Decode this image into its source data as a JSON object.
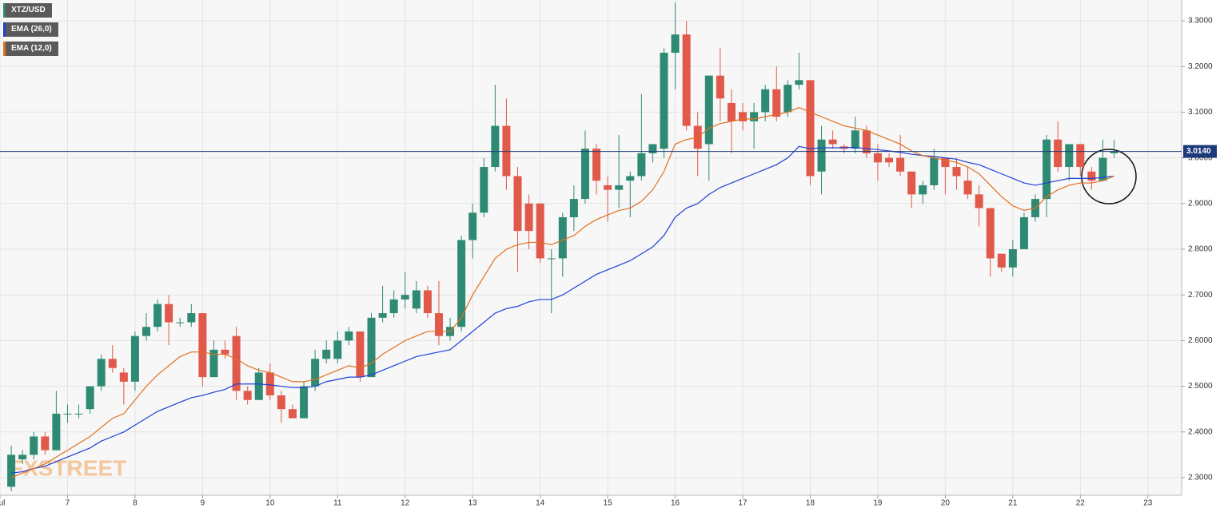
{
  "chart_data": {
    "type": "candlestick",
    "categories": [
      null,
      null,
      null,
      null,
      null,
      null,
      null,
      null,
      null,
      null,
      null,
      null,
      null,
      null,
      null,
      null,
      null,
      null,
      null,
      null,
      null,
      null,
      null,
      null,
      null,
      null,
      null,
      null,
      null,
      null,
      null,
      null,
      null,
      null,
      null,
      null,
      null,
      null,
      null,
      null,
      null,
      null,
      null,
      null,
      null,
      null,
      null,
      null,
      null,
      null,
      null,
      null,
      null,
      null,
      null,
      null,
      null,
      null,
      null,
      null,
      null,
      null,
      null,
      null,
      null,
      null,
      null,
      null,
      null,
      null,
      null,
      null,
      null,
      null,
      null,
      null,
      null,
      null,
      null,
      null,
      null,
      null,
      null,
      null,
      null,
      null,
      null,
      null,
      null,
      null,
      null,
      null,
      null,
      null,
      null,
      null,
      null,
      null,
      null
    ],
    "series": [
      {
        "name": "XTZ/USD",
        "color": "#2f8a73",
        "down_color": "#e0594a",
        "open": [
          2.28,
          2.34,
          2.35,
          2.39,
          2.36,
          2.44,
          2.44,
          2.45,
          2.5,
          2.56,
          2.53,
          2.51,
          2.61,
          2.63,
          2.68,
          2.64,
          2.64,
          2.66,
          2.52,
          2.58,
          2.61,
          2.49,
          2.47,
          2.53,
          2.48,
          2.45,
          2.43,
          2.5,
          2.56,
          2.56,
          2.6,
          2.62,
          2.52,
          2.65,
          2.66,
          2.69,
          2.67,
          2.71,
          2.66,
          2.61,
          2.63,
          2.82,
          2.88,
          2.98,
          3.07,
          2.96,
          2.9,
          2.9,
          2.78,
          2.78,
          2.87,
          2.91,
          3.02,
          2.94,
          2.93,
          2.95,
          2.96,
          3.01,
          3.02,
          3.23,
          3.27,
          3.07,
          3.03,
          3.18,
          3.12,
          3.1,
          3.08,
          3.1,
          3.15,
          3.1,
          3.16,
          3.17,
          2.97,
          3.04,
          3.025,
          3.02,
          3.06,
          3.01,
          3.0,
          3.0,
          2.97,
          2.92,
          2.94,
          3.0,
          2.98,
          2.95,
          2.92,
          2.89,
          2.79,
          2.76,
          2.8,
          2.87,
          2.91,
          3.04,
          2.98,
          3.03,
          2.97,
          2.95,
          3.01
        ],
        "high": [
          2.37,
          2.36,
          2.4,
          2.4,
          2.49,
          2.46,
          2.46,
          2.5,
          2.57,
          2.59,
          2.54,
          2.62,
          2.66,
          2.69,
          2.7,
          2.65,
          2.68,
          2.66,
          2.6,
          2.6,
          2.63,
          2.5,
          2.54,
          2.55,
          2.49,
          2.46,
          2.51,
          2.58,
          2.6,
          2.62,
          2.63,
          2.62,
          2.66,
          2.72,
          2.71,
          2.75,
          2.73,
          2.72,
          2.73,
          2.65,
          2.83,
          2.9,
          3.0,
          3.16,
          3.13,
          2.98,
          2.92,
          2.9,
          2.8,
          2.88,
          2.94,
          3.06,
          3.03,
          2.96,
          3.05,
          2.97,
          3.14,
          3.03,
          3.24,
          3.34,
          3.3,
          3.1,
          3.18,
          3.24,
          3.15,
          3.12,
          3.12,
          3.16,
          3.2,
          3.17,
          3.23,
          3.17,
          3.07,
          3.06,
          3.03,
          3.09,
          3.07,
          3.03,
          3.01,
          3.05,
          2.97,
          2.95,
          3.02,
          3.0,
          3.0,
          2.98,
          2.94,
          2.89,
          2.79,
          2.82,
          2.88,
          2.92,
          3.05,
          3.08,
          3.03,
          3.03,
          2.98,
          3.04,
          3.04
        ],
        "low": [
          2.27,
          2.33,
          2.34,
          2.35,
          2.36,
          2.42,
          2.43,
          2.44,
          2.49,
          2.53,
          2.46,
          2.49,
          2.6,
          2.62,
          2.59,
          2.63,
          2.63,
          2.5,
          2.52,
          2.56,
          2.47,
          2.46,
          2.47,
          2.47,
          2.42,
          2.43,
          2.43,
          2.49,
          2.55,
          2.55,
          2.59,
          2.51,
          2.52,
          2.64,
          2.65,
          2.67,
          2.66,
          2.65,
          2.59,
          2.6,
          2.62,
          2.78,
          2.87,
          2.97,
          2.93,
          2.75,
          2.8,
          2.77,
          2.66,
          2.74,
          2.84,
          2.9,
          2.92,
          2.86,
          2.89,
          2.87,
          2.95,
          2.99,
          3.0,
          3.15,
          3.06,
          2.96,
          2.95,
          3.08,
          3.01,
          3.06,
          3.02,
          3.08,
          3.08,
          3.09,
          3.15,
          2.94,
          2.92,
          3.02,
          3.01,
          3.01,
          3.0,
          2.95,
          2.98,
          2.96,
          2.89,
          2.9,
          2.93,
          2.92,
          2.93,
          2.91,
          2.85,
          2.74,
          2.75,
          2.74,
          2.8,
          2.86,
          2.87,
          2.97,
          2.95,
          2.96,
          2.93,
          2.95,
          3.0
        ],
        "close": [
          2.35,
          2.35,
          2.39,
          2.36,
          2.44,
          2.44,
          2.44,
          2.5,
          2.56,
          2.54,
          2.51,
          2.61,
          2.63,
          2.68,
          2.64,
          2.64,
          2.66,
          2.52,
          2.58,
          2.57,
          2.49,
          2.47,
          2.53,
          2.48,
          2.45,
          2.43,
          2.5,
          2.56,
          2.58,
          2.6,
          2.62,
          2.52,
          2.65,
          2.66,
          2.69,
          2.7,
          2.71,
          2.66,
          2.61,
          2.63,
          2.82,
          2.88,
          2.98,
          3.07,
          2.96,
          2.84,
          2.84,
          2.78,
          2.78,
          2.87,
          2.91,
          3.02,
          2.95,
          2.93,
          2.94,
          2.96,
          3.01,
          3.03,
          3.23,
          3.27,
          3.07,
          3.02,
          3.18,
          3.13,
          3.08,
          3.08,
          3.1,
          3.15,
          3.09,
          3.16,
          3.17,
          2.96,
          3.04,
          3.03,
          3.02,
          3.06,
          3.01,
          2.99,
          2.99,
          2.97,
          2.92,
          2.94,
          3.0,
          2.98,
          2.96,
          2.92,
          2.89,
          2.78,
          2.76,
          2.8,
          2.87,
          2.91,
          3.04,
          2.98,
          3.03,
          2.98,
          2.95,
          3.0,
          3.014
        ]
      },
      {
        "name": "EMA (26,0)",
        "color": "#1f3fd6",
        "values": [
          2.31,
          2.313,
          2.32,
          2.325,
          2.335,
          2.345,
          2.355,
          2.365,
          2.38,
          2.39,
          2.4,
          2.415,
          2.43,
          2.445,
          2.455,
          2.465,
          2.475,
          2.48,
          2.487,
          2.493,
          2.505,
          2.505,
          2.505,
          2.503,
          2.5,
          2.497,
          2.497,
          2.5,
          2.51,
          2.515,
          2.52,
          2.52,
          2.525,
          2.535,
          2.545,
          2.555,
          2.565,
          2.57,
          2.575,
          2.58,
          2.6,
          2.62,
          2.64,
          2.66,
          2.67,
          2.675,
          2.685,
          2.69,
          2.69,
          2.7,
          2.715,
          2.73,
          2.745,
          2.755,
          2.765,
          2.775,
          2.79,
          2.805,
          2.83,
          2.87,
          2.89,
          2.9,
          2.92,
          2.935,
          2.945,
          2.955,
          2.965,
          2.975,
          2.985,
          3.0,
          3.025,
          3.02,
          3.022,
          3.022,
          3.022,
          3.023,
          3.02,
          3.018,
          3.015,
          3.012,
          3.008,
          3.005,
          3.003,
          3.0,
          2.997,
          2.99,
          2.985,
          2.975,
          2.965,
          2.955,
          2.945,
          2.94,
          2.945,
          2.95,
          2.955,
          2.955,
          2.955,
          2.957,
          2.96
        ]
      },
      {
        "name": "EMA (12,0)",
        "color": "#e07020",
        "values": [
          2.3,
          2.31,
          2.32,
          2.33,
          2.345,
          2.36,
          2.375,
          2.39,
          2.41,
          2.43,
          2.44,
          2.47,
          2.5,
          2.525,
          2.545,
          2.565,
          2.575,
          2.575,
          2.57,
          2.57,
          2.56,
          2.545,
          2.535,
          2.53,
          2.52,
          2.51,
          2.51,
          2.515,
          2.525,
          2.535,
          2.545,
          2.54,
          2.55,
          2.57,
          2.585,
          2.6,
          2.61,
          2.62,
          2.62,
          2.62,
          2.65,
          2.7,
          2.74,
          2.78,
          2.8,
          2.81,
          2.815,
          2.815,
          2.81,
          2.82,
          2.83,
          2.85,
          2.865,
          2.875,
          2.885,
          2.89,
          2.905,
          2.93,
          2.97,
          3.03,
          3.04,
          3.045,
          3.065,
          3.075,
          3.08,
          3.085,
          3.085,
          3.09,
          3.095,
          3.1,
          3.11,
          3.1,
          3.09,
          3.08,
          3.07,
          3.065,
          3.06,
          3.05,
          3.04,
          3.03,
          3.015,
          3.005,
          3.0,
          2.995,
          2.99,
          2.98,
          2.965,
          2.94,
          2.915,
          2.895,
          2.885,
          2.89,
          2.915,
          2.93,
          2.94,
          2.945,
          2.945,
          2.95,
          2.96
        ]
      }
    ],
    "xlim": [
      -1,
      104
    ],
    "xticks": [
      {
        "value": -1,
        "label": "Jul"
      },
      {
        "value": 5,
        "label": "7"
      },
      {
        "value": 11,
        "label": "8"
      },
      {
        "value": 17,
        "label": "9"
      },
      {
        "value": 23,
        "label": "10"
      },
      {
        "value": 29,
        "label": "11"
      },
      {
        "value": 35,
        "label": "12"
      },
      {
        "value": 41,
        "label": "13"
      },
      {
        "value": 47,
        "label": "14"
      },
      {
        "value": 53,
        "label": "15"
      },
      {
        "value": 59,
        "label": "16"
      },
      {
        "value": 65,
        "label": "17"
      },
      {
        "value": 71,
        "label": "18"
      },
      {
        "value": 77,
        "label": "19"
      },
      {
        "value": 83,
        "label": "20"
      },
      {
        "value": 89,
        "label": "21"
      },
      {
        "value": 95,
        "label": "22"
      },
      {
        "value": 101,
        "label": "23"
      }
    ],
    "ylim": [
      2.2615,
      3.3455
    ],
    "yticks": [
      {
        "value": 2.3,
        "label": "2.3000"
      },
      {
        "value": 2.4,
        "label": "2.4000"
      },
      {
        "value": 2.5,
        "label": "2.5000"
      },
      {
        "value": 2.6,
        "label": "2.6000"
      },
      {
        "value": 2.7,
        "label": "2.7000"
      },
      {
        "value": 2.8,
        "label": "2.8000"
      },
      {
        "value": 2.9,
        "label": "2.9000"
      },
      {
        "value": 3.0,
        "label": "3.0000"
      },
      {
        "value": 3.1,
        "label": "3.1000"
      },
      {
        "value": 3.2,
        "label": "3.2000"
      },
      {
        "value": 3.3,
        "label": "3.3000"
      }
    ],
    "grid": true,
    "last_price": {
      "value": 3.014,
      "label": "3.0140",
      "color": "#1c3a7a"
    },
    "watermark": "FXSTREET"
  }
}
